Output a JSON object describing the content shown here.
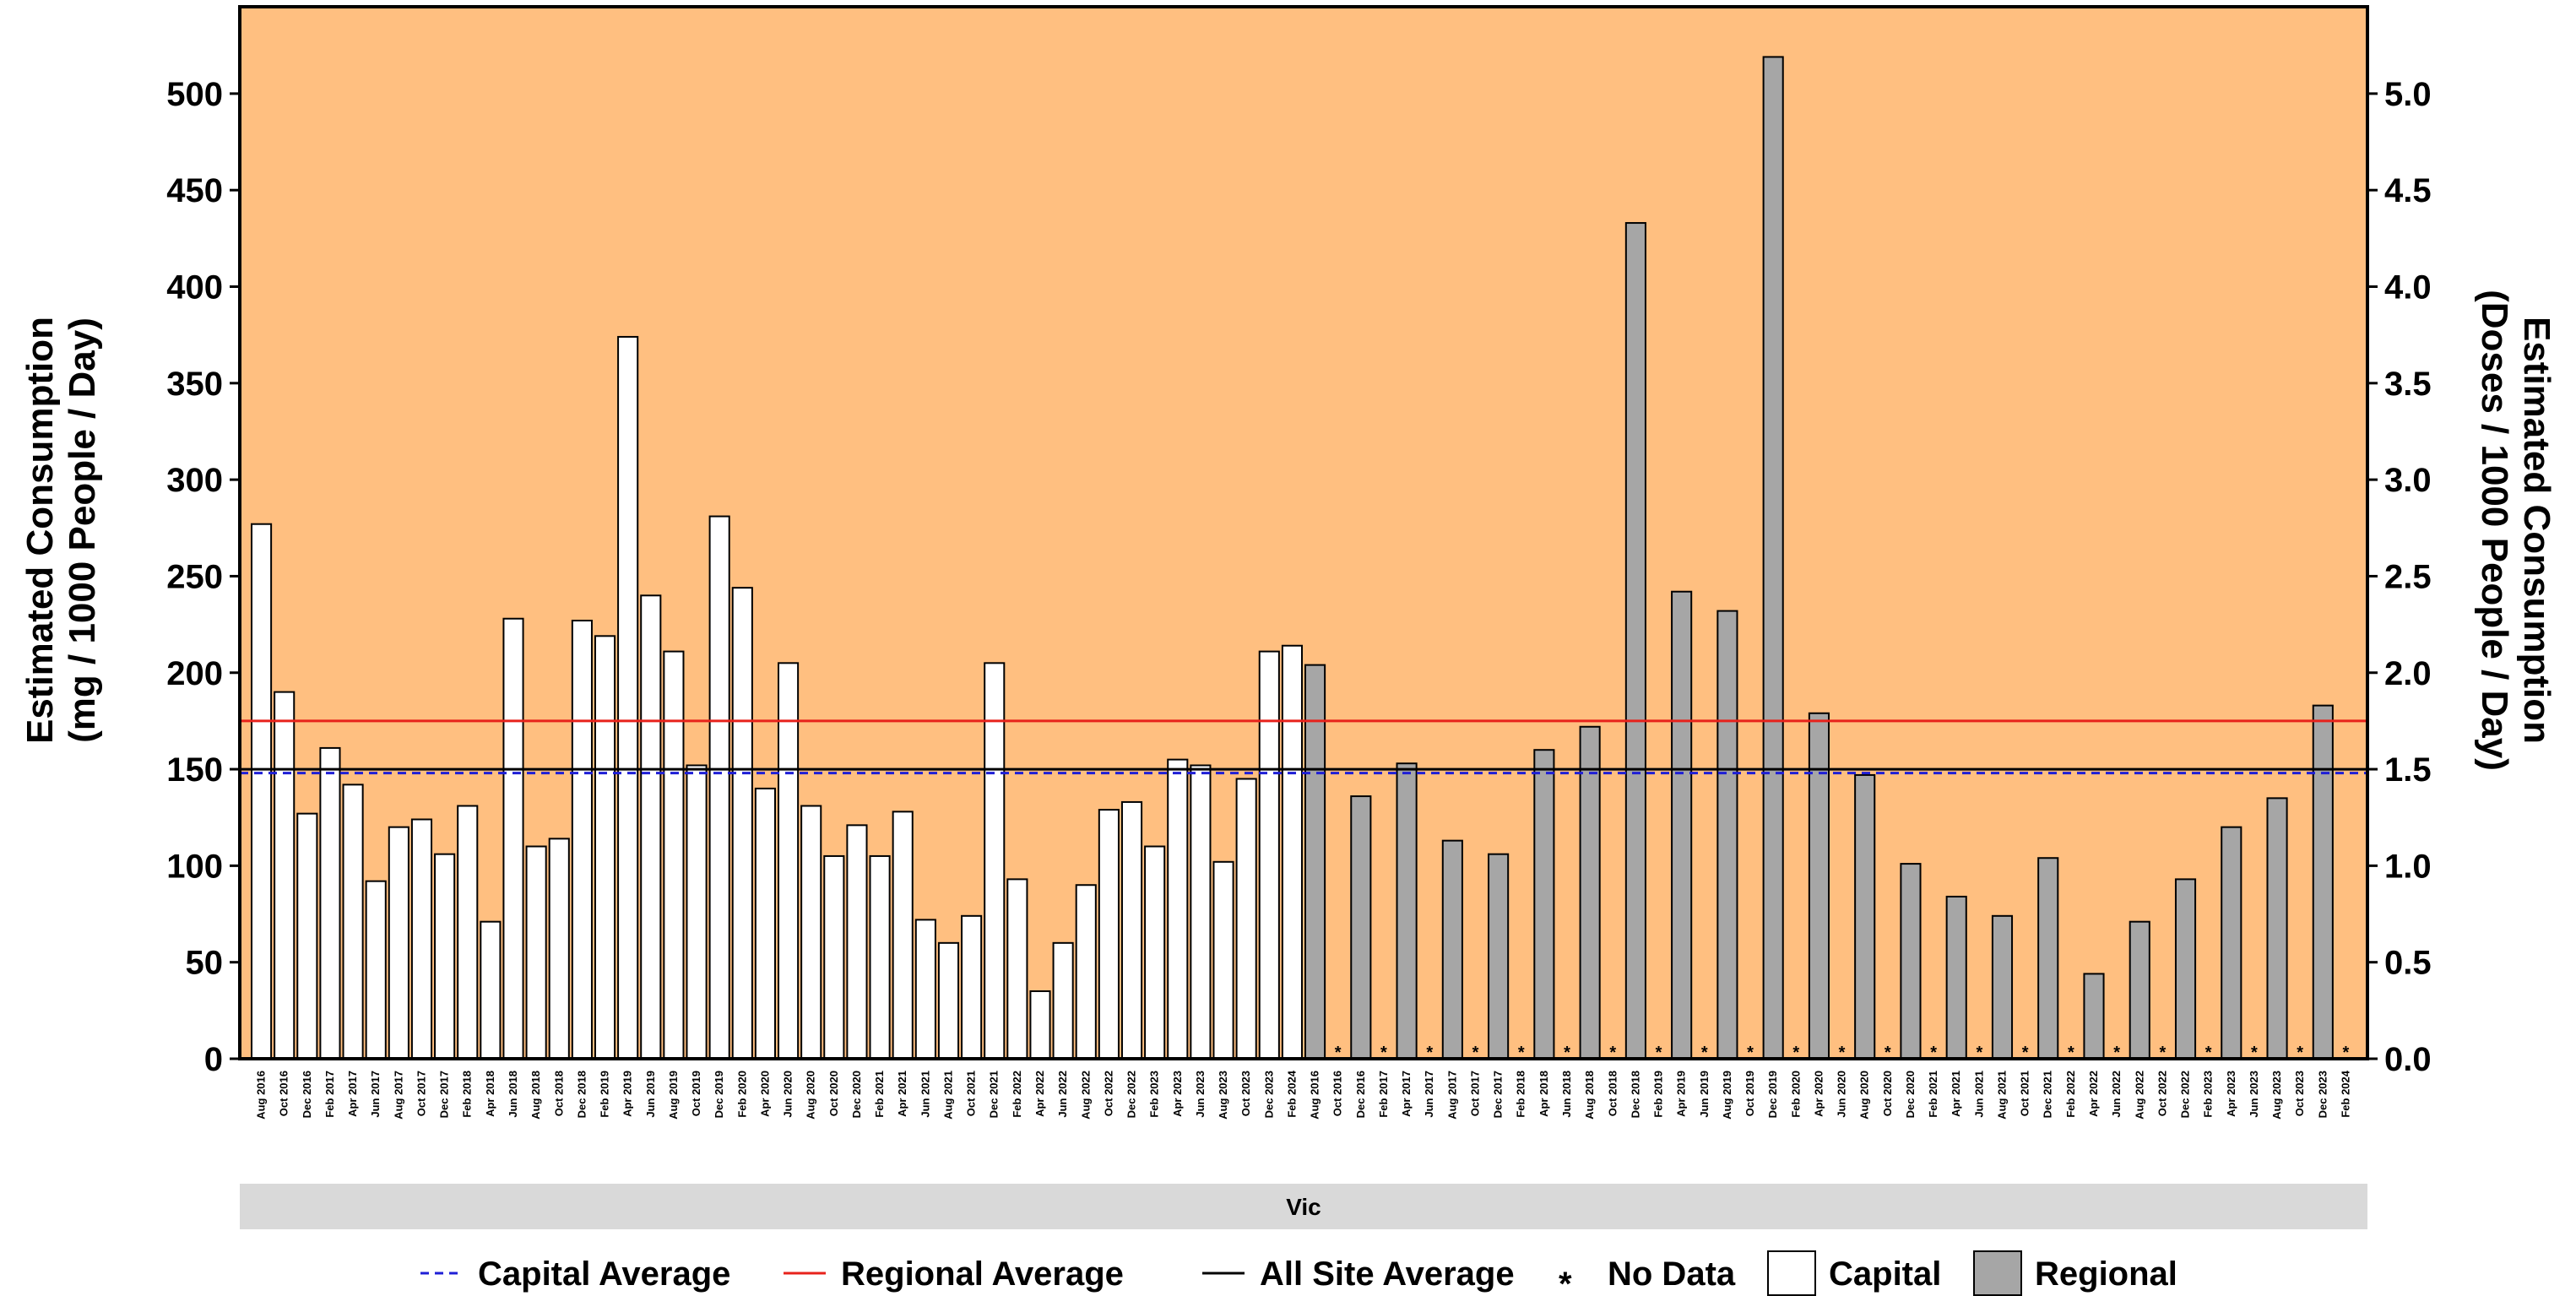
{
  "chart_data": {
    "type": "bar",
    "ylabel_left": [
      "Estimated Consumption",
      "(mg / 1000 People / Day)"
    ],
    "ylabel_right": [
      "Estimated Consumption",
      "(Doses / 1000 People / Day)"
    ],
    "ylim_left": [
      0,
      545
    ],
    "ylim_right": [
      0,
      5.45
    ],
    "yticks_left": [
      0,
      50,
      100,
      150,
      200,
      250,
      300,
      350,
      400,
      450,
      500
    ],
    "yticks_right": [
      "0.0",
      "0.5",
      "1.0",
      "1.5",
      "2.0",
      "2.5",
      "3.0",
      "3.5",
      "4.0",
      "4.5",
      "5.0"
    ],
    "panel_label": "Vic",
    "background_color": "#FFBF80",
    "capital_fill": "#FFFFFF",
    "regional_fill": "#A6A6A6",
    "capital_average": 148,
    "regional_average": 175,
    "all_site_average": 150,
    "capital_avg_color": "#1F1FD6",
    "regional_avg_color": "#E8221B",
    "all_avg_color": "#000000",
    "no_data_marker": "*",
    "series": [
      {
        "name": "Capital",
        "categories": [
          "Aug 2016",
          "Oct 2016",
          "Dec 2016",
          "Feb 2017",
          "Apr 2017",
          "Jun 2017",
          "Aug 2017",
          "Oct 2017",
          "Dec 2017",
          "Feb 2018",
          "Apr 2018",
          "Jun 2018",
          "Aug 2018",
          "Oct 2018",
          "Dec 2018",
          "Feb 2019",
          "Apr 2019",
          "Jun 2019",
          "Aug 2019",
          "Oct 2019",
          "Dec 2019",
          "Feb 2020",
          "Apr 2020",
          "Jun 2020",
          "Aug 2020",
          "Oct 2020",
          "Dec 2020",
          "Feb 2021",
          "Apr 2021",
          "Jun 2021",
          "Aug 2021",
          "Oct 2021",
          "Dec 2021",
          "Feb 2022",
          "Apr 2022",
          "Jun 2022",
          "Aug 2022",
          "Oct 2022",
          "Dec 2022",
          "Feb 2023",
          "Apr 2023",
          "Jun 2023",
          "Aug 2023",
          "Oct 2023",
          "Dec 2023",
          "Feb 2024"
        ],
        "values": [
          277,
          190,
          127,
          161,
          142,
          92,
          120,
          124,
          106,
          131,
          71,
          228,
          110,
          114,
          227,
          219,
          374,
          240,
          211,
          152,
          281,
          244,
          140,
          205,
          131,
          105,
          121,
          105,
          128,
          72,
          60,
          74,
          205,
          93,
          35,
          60,
          90,
          129,
          133,
          110,
          155,
          152,
          102,
          145,
          211,
          214
        ]
      },
      {
        "name": "Regional",
        "categories": [
          "Aug 2016",
          "Oct 2016",
          "Dec 2016",
          "Feb 2017",
          "Apr 2017",
          "Jun 2017",
          "Aug 2017",
          "Oct 2017",
          "Dec 2017",
          "Feb 2018",
          "Apr 2018",
          "Jun 2018",
          "Aug 2018",
          "Oct 2018",
          "Dec 2018",
          "Feb 2019",
          "Apr 2019",
          "Jun 2019",
          "Aug 2019",
          "Oct 2019",
          "Dec 2019",
          "Feb 2020",
          "Apr 2020",
          "Jun 2020",
          "Aug 2020",
          "Oct 2020",
          "Dec 2020",
          "Feb 2021",
          "Apr 2021",
          "Jun 2021",
          "Aug 2021",
          "Oct 2021",
          "Dec 2021",
          "Feb 2022",
          "Apr 2022",
          "Jun 2022",
          "Aug 2022",
          "Oct 2022",
          "Dec 2022",
          "Feb 2023",
          "Apr 2023",
          "Jun 2023",
          "Aug 2023",
          "Oct 2023",
          "Dec 2023",
          "Feb 2024"
        ],
        "values": [
          204,
          null,
          136,
          null,
          153,
          null,
          113,
          null,
          106,
          null,
          160,
          null,
          172,
          null,
          433,
          null,
          242,
          null,
          232,
          null,
          519,
          null,
          179,
          null,
          147,
          null,
          101,
          null,
          84,
          null,
          74,
          null,
          104,
          null,
          44,
          null,
          71,
          null,
          93,
          null,
          120,
          null,
          135,
          null,
          183,
          null
        ]
      }
    ],
    "legend": {
      "items": [
        "Capital Average",
        "Regional Average",
        "All Site Average",
        "No Data",
        "Capital",
        "Regional"
      ],
      "placement": "bottom"
    }
  }
}
